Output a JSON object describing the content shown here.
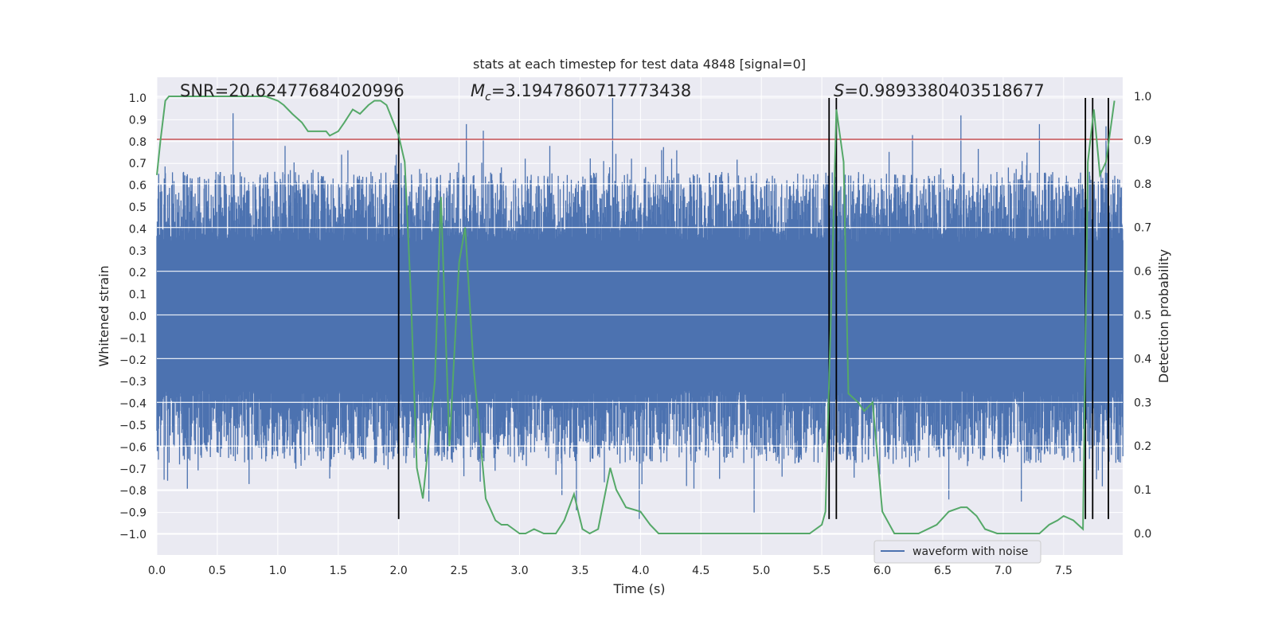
{
  "chart_data": {
    "type": "line",
    "title": "stats at each timestep for test data 4848 [signal=0]",
    "xlabel": "Time (s)",
    "ylabel": "Whitened strain",
    "y2label": "Detection probability",
    "xlim": [
      0.0,
      8.0
    ],
    "ylim": [
      -1.05,
      1.05
    ],
    "y2lim": [
      -0.05,
      1.0
    ],
    "xticks": [
      "0.0",
      "0.5",
      "1.0",
      "1.5",
      "2.0",
      "2.5",
      "3.0",
      "3.5",
      "4.0",
      "4.5",
      "5.0",
      "5.5",
      "6.0",
      "6.5",
      "7.0",
      "7.5"
    ],
    "yticks": [
      "1.0",
      "0.9",
      "0.8",
      "0.7",
      "0.6",
      "0.5",
      "0.4",
      "0.3",
      "0.2",
      "0.1",
      "0.0",
      "−0.1",
      "−0.2",
      "−0.3",
      "−0.4",
      "−0.5",
      "−0.6",
      "−0.7",
      "−0.8",
      "−0.9",
      "−1.0"
    ],
    "y2ticks": [
      "1.0",
      "0.9",
      "0.8",
      "0.7",
      "0.6",
      "0.5",
      "0.4",
      "0.3",
      "0.2",
      "0.1",
      "0.0"
    ],
    "annotations": {
      "snr": "SNR=20.62477684020996",
      "mc_symbol": "M",
      "mc_sub": "c",
      "mc_value": "=3.1947860717773438",
      "s_symbol": "S",
      "s_value": "=0.9893380403518677"
    },
    "threshold": {
      "value": 0.81,
      "color": "#c44e52"
    },
    "vertical_markers": [
      2.0,
      5.56,
      5.62,
      7.68,
      7.74,
      7.87
    ],
    "series": [
      {
        "name": "waveform with noise",
        "color": "#4c72b0",
        "axis": "left",
        "envelope": {
          "body": 0.34,
          "typical_peak": 0.62,
          "max": 1.0,
          "min": -0.93
        },
        "peaks": [
          {
            "x": 0.63,
            "y": 0.93
          },
          {
            "x": 1.06,
            "y": 0.78
          },
          {
            "x": 1.58,
            "y": 0.76
          },
          {
            "x": 1.98,
            "y": 0.74
          },
          {
            "x": 2.56,
            "y": 0.88
          },
          {
            "x": 2.7,
            "y": 0.85
          },
          {
            "x": 3.77,
            "y": 1.0
          },
          {
            "x": 3.25,
            "y": 0.78
          },
          {
            "x": 4.3,
            "y": 0.76
          },
          {
            "x": 6.25,
            "y": 0.83
          },
          {
            "x": 6.65,
            "y": 0.92
          },
          {
            "x": 7.3,
            "y": 0.88
          },
          {
            "x": 7.85,
            "y": 0.87
          },
          {
            "x": 0.06,
            "y": -0.75
          },
          {
            "x": 2.25,
            "y": -0.85
          },
          {
            "x": 3.35,
            "y": -0.82
          },
          {
            "x": 3.47,
            "y": -0.89
          },
          {
            "x": 3.99,
            "y": -0.93
          },
          {
            "x": 4.94,
            "y": -0.9
          },
          {
            "x": 6.55,
            "y": -0.84
          },
          {
            "x": 7.15,
            "y": -0.85
          },
          {
            "x": 7.82,
            "y": -0.78
          }
        ]
      },
      {
        "name": "Detection probability",
        "color": "#55a868",
        "axis": "right",
        "x": [
          0.0,
          0.03,
          0.07,
          0.1,
          0.2,
          0.3,
          0.5,
          0.7,
          0.9,
          1.0,
          1.05,
          1.12,
          1.2,
          1.25,
          1.4,
          1.43,
          1.5,
          1.55,
          1.62,
          1.68,
          1.75,
          1.8,
          1.85,
          1.9,
          2.0,
          2.05,
          2.1,
          2.15,
          2.2,
          2.3,
          2.35,
          2.42,
          2.5,
          2.55,
          2.62,
          2.72,
          2.8,
          2.85,
          2.9,
          2.95,
          3.0,
          3.05,
          3.12,
          3.2,
          3.3,
          3.37,
          3.45,
          3.52,
          3.58,
          3.65,
          3.75,
          3.8,
          3.88,
          4.0,
          4.08,
          4.15,
          4.3,
          4.5,
          4.7,
          4.8,
          4.9,
          5.0,
          5.2,
          5.3,
          5.4,
          5.5,
          5.53,
          5.58,
          5.62,
          5.68,
          5.72,
          5.8,
          5.85,
          5.92,
          6.0,
          6.1,
          6.3,
          6.45,
          6.55,
          6.65,
          6.7,
          6.78,
          6.85,
          6.95,
          7.1,
          7.3,
          7.38,
          7.45,
          7.5,
          7.58,
          7.62,
          7.66,
          7.7,
          7.75,
          7.8,
          7.85,
          7.92
        ],
        "y": [
          0.82,
          0.9,
          0.99,
          1.0,
          1.0,
          1.0,
          1.0,
          1.0,
          1.0,
          0.99,
          0.98,
          0.96,
          0.94,
          0.92,
          0.92,
          0.91,
          0.92,
          0.94,
          0.97,
          0.96,
          0.98,
          0.99,
          0.99,
          0.98,
          0.91,
          0.85,
          0.55,
          0.15,
          0.08,
          0.35,
          0.77,
          0.2,
          0.62,
          0.7,
          0.38,
          0.08,
          0.03,
          0.02,
          0.02,
          0.01,
          0.0,
          0.0,
          0.01,
          0.0,
          0.0,
          0.03,
          0.09,
          0.01,
          0.0,
          0.01,
          0.15,
          0.1,
          0.06,
          0.05,
          0.02,
          0.0,
          0.0,
          0.0,
          0.0,
          0.0,
          0.0,
          0.0,
          0.0,
          0.0,
          0.0,
          0.02,
          0.05,
          0.55,
          0.97,
          0.85,
          0.32,
          0.3,
          0.28,
          0.3,
          0.05,
          0.0,
          0.0,
          0.02,
          0.05,
          0.06,
          0.06,
          0.04,
          0.01,
          0.0,
          0.0,
          0.0,
          0.02,
          0.03,
          0.04,
          0.03,
          0.02,
          0.01,
          0.85,
          0.97,
          0.82,
          0.85,
          0.99
        ]
      }
    ],
    "legend": {
      "label": "waveform with noise",
      "position": "lower-right"
    }
  }
}
